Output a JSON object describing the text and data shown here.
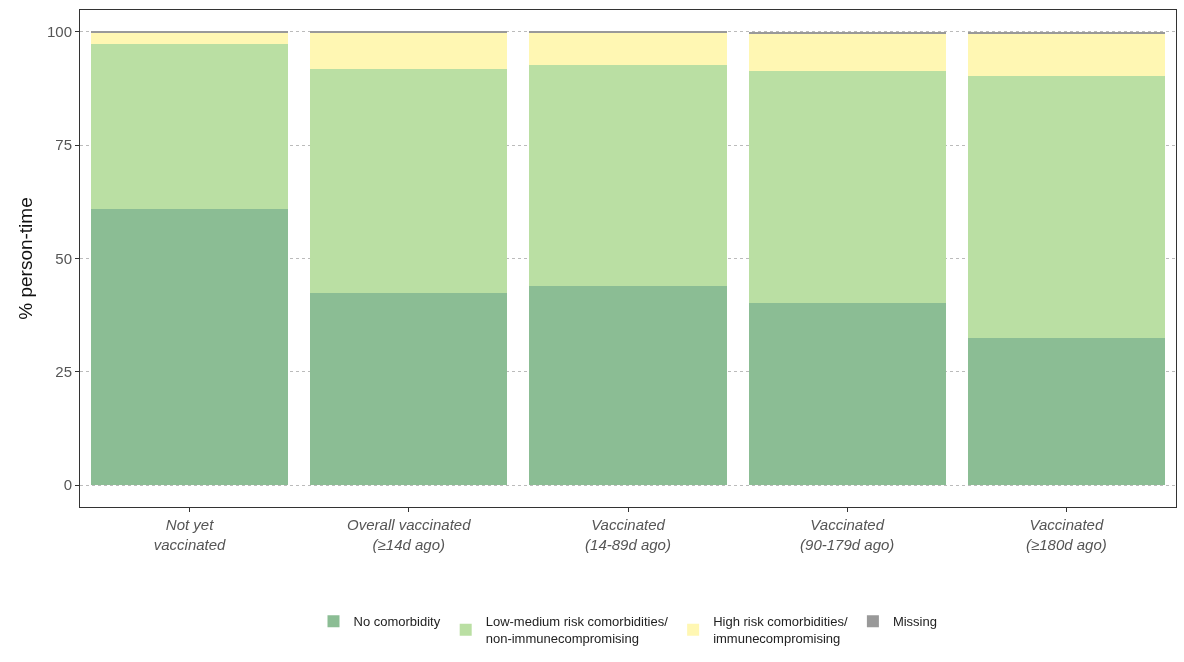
{
  "chart_data": {
    "type": "bar",
    "stacked": true,
    "ylabel": "% person-time",
    "categories": [
      "Not yet\nvaccinated",
      "Overall vaccinated\n(≥14d ago)",
      "Vaccinated\n(14-89d ago)",
      "Vaccinated\n(90-179d ago)",
      "Vaccinated\n(≥180d ago)"
    ],
    "series": [
      {
        "name": "No comorbidity",
        "color": "#8bbd94",
        "values": [
          61.0,
          42.3,
          44.0,
          40.1,
          32.5
        ]
      },
      {
        "name": "Low-medium risk comorbidities/\nnon-immunecompromising",
        "color": "#badfa3",
        "values": [
          36.2,
          49.6,
          48.6,
          51.2,
          57.7
        ]
      },
      {
        "name": "High risk comorbidities/\nimmunecompromising",
        "color": "#fff7b3",
        "values": [
          2.7,
          7.9,
          7.3,
          8.4,
          9.2
        ]
      },
      {
        "name": "Missing",
        "color": "#999999",
        "values": [
          0.1,
          0.2,
          0.1,
          0.3,
          0.6
        ]
      }
    ],
    "ylim": [
      -4.8,
      104.8
    ],
    "yticks": [
      0,
      25,
      50,
      75,
      100
    ],
    "grid": "y",
    "legend": "bottom"
  }
}
